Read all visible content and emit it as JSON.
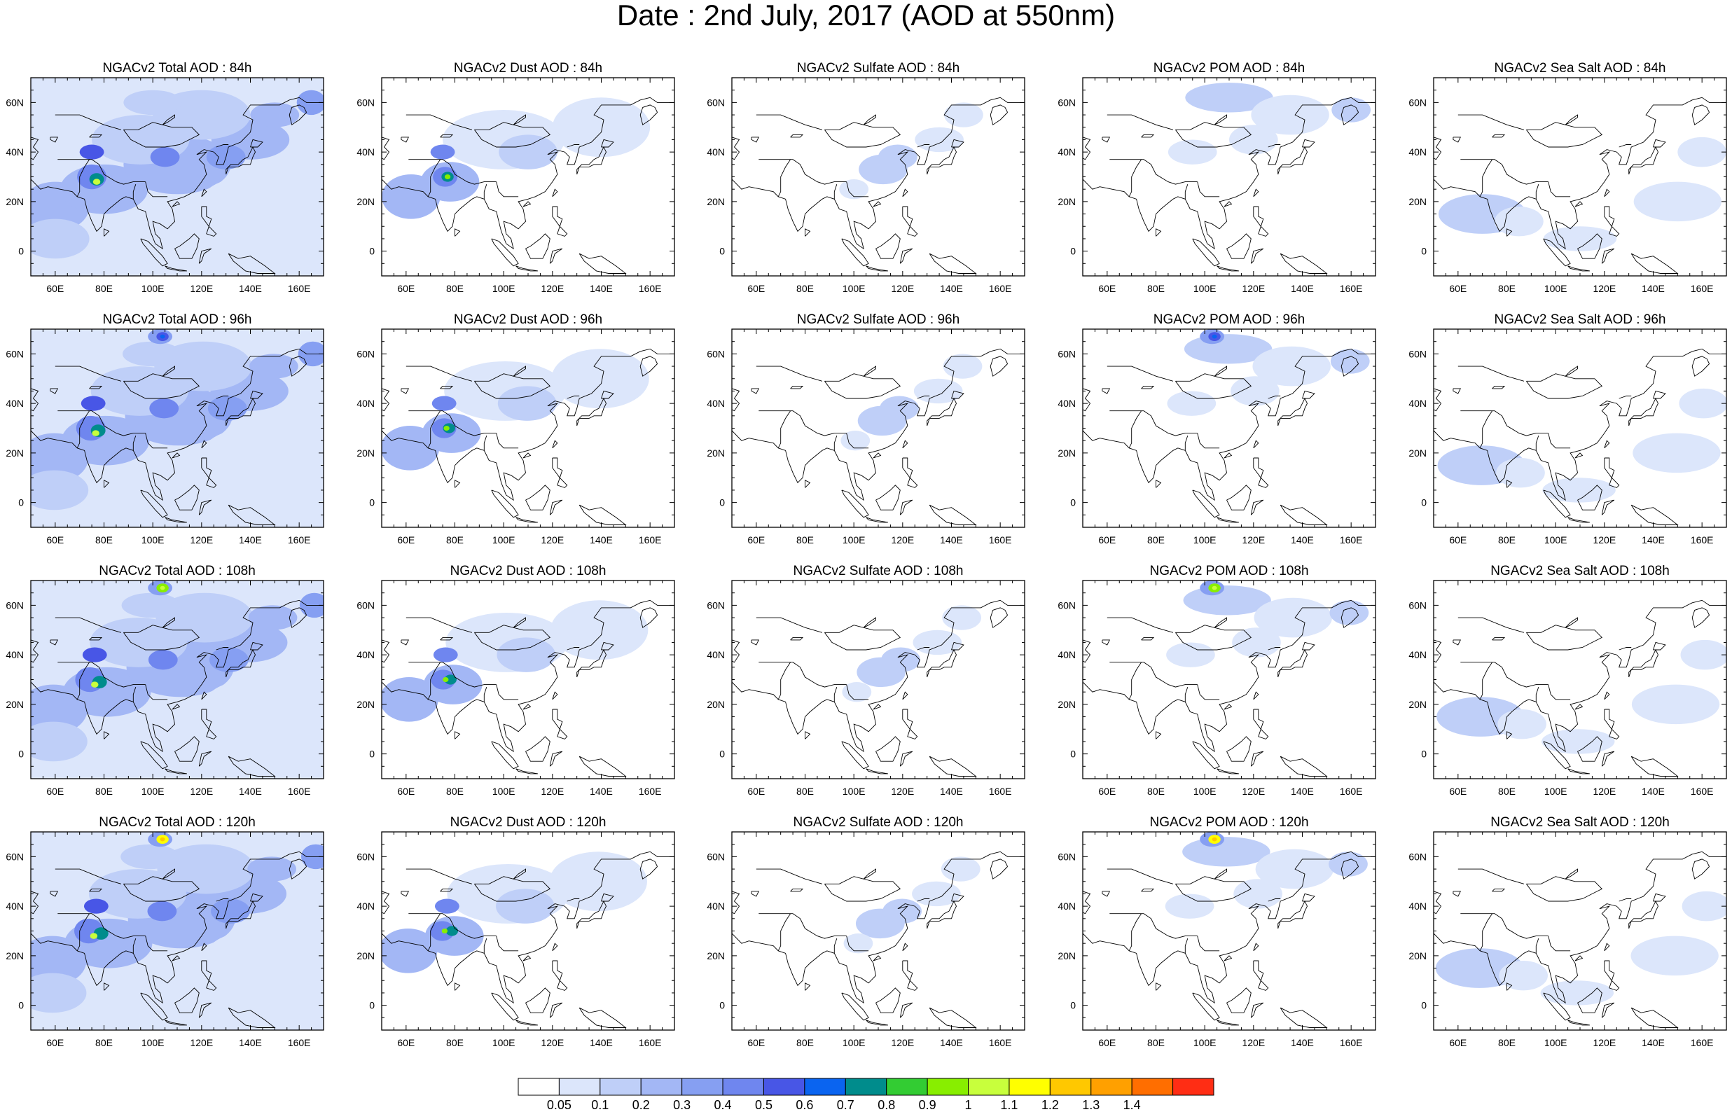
{
  "title": "Date : 2nd July, 2017 (AOD at 550nm)",
  "panels": [
    [
      "NGACv2 Total AOD : 84h",
      "NGACv2 Dust AOD : 84h",
      "NGACv2 Sulfate AOD : 84h",
      "NGACv2 POM AOD : 84h",
      "NGACv2 Sea Salt AOD : 84h"
    ],
    [
      "NGACv2 Total AOD : 96h",
      "NGACv2 Dust AOD : 96h",
      "NGACv2 Sulfate AOD : 96h",
      "NGACv2 POM AOD : 96h",
      "NGACv2 Sea Salt AOD : 96h"
    ],
    [
      "NGACv2 Total AOD : 108h",
      "NGACv2 Dust AOD : 108h",
      "NGACv2 Sulfate AOD : 108h",
      "NGACv2 POM AOD : 108h",
      "NGACv2 Sea Salt AOD : 108h"
    ],
    [
      "NGACv2 Total AOD : 120h",
      "NGACv2 Dust AOD : 120h",
      "NGACv2 Sulfate AOD : 120h",
      "NGACv2 POM AOD : 120h",
      "NGACv2 Sea Salt  AOD : 120h"
    ]
  ],
  "lon_ticks": [
    "60E",
    "80E",
    "100E",
    "120E",
    "140E",
    "160E"
  ],
  "lat_ticks": [
    "60N",
    "40N",
    "20N",
    "0"
  ],
  "colorbar": {
    "labels": [
      "0.05",
      "0.1",
      "0.2",
      "0.3",
      "0.4",
      "0.5",
      "0.6",
      "0.7",
      "0.8",
      "0.9",
      "1",
      "1.1",
      "1.2",
      "1.3",
      "1.4"
    ],
    "colors": [
      "#ffffff",
      "#dce6fb",
      "#bfcff8",
      "#a3b7f5",
      "#869ff2",
      "#6f86ef",
      "#4856e6",
      "#0a64f0",
      "#008c8c",
      "#33cc33",
      "#88ee00",
      "#c8ff3c",
      "#ffff00",
      "#ffc800",
      "#ffa000",
      "#ff6e00",
      "#ff2d14"
    ]
  },
  "colors": {
    "coast": "#000000",
    "frame": "#000000"
  }
}
